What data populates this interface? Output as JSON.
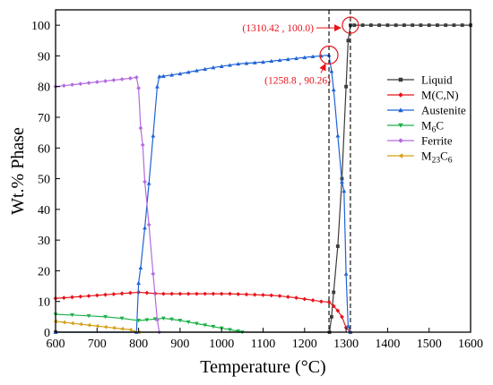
{
  "chart_data": {
    "type": "line",
    "xlabel": "Temperature (°C)",
    "ylabel": "Wt.% Phase",
    "xlim": [
      600,
      1600
    ],
    "ylim": [
      0,
      105
    ],
    "xticks": [
      600,
      700,
      800,
      900,
      1000,
      1100,
      1200,
      1300,
      1400,
      1500,
      1600
    ],
    "yticks": [
      0,
      10,
      20,
      30,
      40,
      50,
      60,
      70,
      80,
      90,
      100
    ],
    "grid": false,
    "legend_position": "right",
    "legend_entries": [
      "Liquid",
      "M(C,N)",
      "Austenite",
      "M6C",
      "Ferrite",
      "M23C6"
    ],
    "legend_display": [
      {
        "base": "Liquid",
        "sub": "",
        "rest": ""
      },
      {
        "base": "M(C,N)",
        "sub": "",
        "rest": ""
      },
      {
        "base": "Austenite",
        "sub": "",
        "rest": ""
      },
      {
        "base": "M",
        "sub": "6",
        "rest": "C"
      },
      {
        "base": "Ferrite",
        "sub": "",
        "rest": ""
      },
      {
        "base": "M",
        "sub": "23",
        "rest": "C6"
      }
    ],
    "series": [
      {
        "name": "Liquid",
        "color": "#3b3b3b",
        "marker": "square",
        "points": [
          [
            600,
            0
          ],
          [
            1260,
            0
          ],
          [
            1265,
            5
          ],
          [
            1270,
            13
          ],
          [
            1280,
            28
          ],
          [
            1290,
            50
          ],
          [
            1300,
            80
          ],
          [
            1305,
            95
          ],
          [
            1310.42,
            100
          ],
          [
            1320,
            100
          ],
          [
            1340,
            100
          ],
          [
            1360,
            100
          ],
          [
            1380,
            100
          ],
          [
            1400,
            100
          ],
          [
            1420,
            100
          ],
          [
            1440,
            100
          ],
          [
            1460,
            100
          ],
          [
            1480,
            100
          ],
          [
            1500,
            100
          ],
          [
            1520,
            100
          ],
          [
            1540,
            100
          ],
          [
            1560,
            100
          ],
          [
            1580,
            100
          ],
          [
            1600,
            100
          ]
        ]
      },
      {
        "name": "M(C,N)",
        "color": "#e8141b",
        "marker": "diamond",
        "points": [
          [
            600,
            11
          ],
          [
            620,
            11.2
          ],
          [
            640,
            11.4
          ],
          [
            660,
            11.6
          ],
          [
            680,
            11.8
          ],
          [
            700,
            12
          ],
          [
            720,
            12.2
          ],
          [
            740,
            12.4
          ],
          [
            760,
            12.6
          ],
          [
            780,
            12.8
          ],
          [
            800,
            13
          ],
          [
            820,
            12.8
          ],
          [
            840,
            12.6
          ],
          [
            860,
            12.5
          ],
          [
            880,
            12.5
          ],
          [
            900,
            12.5
          ],
          [
            920,
            12.5
          ],
          [
            940,
            12.5
          ],
          [
            960,
            12.5
          ],
          [
            980,
            12.5
          ],
          [
            1000,
            12.5
          ],
          [
            1020,
            12.5
          ],
          [
            1040,
            12.4
          ],
          [
            1060,
            12.3
          ],
          [
            1080,
            12.2
          ],
          [
            1100,
            12.1
          ],
          [
            1120,
            12
          ],
          [
            1140,
            11.8
          ],
          [
            1160,
            11.5
          ],
          [
            1180,
            11.2
          ],
          [
            1200,
            10.8
          ],
          [
            1220,
            10.4
          ],
          [
            1240,
            10
          ],
          [
            1258.8,
            9.8
          ],
          [
            1270,
            8.5
          ],
          [
            1280,
            7
          ],
          [
            1290,
            5
          ],
          [
            1300,
            1.5
          ],
          [
            1310.42,
            0
          ]
        ]
      },
      {
        "name": "Austenite",
        "color": "#1f63d6",
        "marker": "triangle-up",
        "points": [
          [
            600,
            0
          ],
          [
            795,
            0
          ],
          [
            800,
            16
          ],
          [
            805,
            21
          ],
          [
            815,
            34
          ],
          [
            825,
            48.5
          ],
          [
            835,
            64
          ],
          [
            845,
            80
          ],
          [
            850,
            83.3
          ],
          [
            860,
            83.4
          ],
          [
            880,
            83.8
          ],
          [
            900,
            84.2
          ],
          [
            920,
            84.7
          ],
          [
            940,
            85.2
          ],
          [
            960,
            85.7
          ],
          [
            980,
            86.2
          ],
          [
            1000,
            86.6
          ],
          [
            1020,
            87
          ],
          [
            1040,
            87.4
          ],
          [
            1060,
            87.6
          ],
          [
            1080,
            87.8
          ],
          [
            1100,
            88
          ],
          [
            1120,
            88.3
          ],
          [
            1140,
            88.6
          ],
          [
            1160,
            88.9
          ],
          [
            1180,
            89.2
          ],
          [
            1200,
            89.5
          ],
          [
            1220,
            89.8
          ],
          [
            1240,
            90
          ],
          [
            1258.8,
            90.26
          ],
          [
            1265,
            85
          ],
          [
            1270,
            79
          ],
          [
            1280,
            64
          ],
          [
            1290,
            49
          ],
          [
            1295,
            46
          ],
          [
            1300,
            19
          ],
          [
            1305,
            2
          ],
          [
            1310.42,
            0
          ]
        ]
      },
      {
        "name": "M6C",
        "color": "#1fb24a",
        "marker": "triangle-down",
        "points": [
          [
            600,
            5.8
          ],
          [
            640,
            5.6
          ],
          [
            680,
            5.3
          ],
          [
            720,
            5
          ],
          [
            760,
            4.5
          ],
          [
            800,
            3.8
          ],
          [
            820,
            4
          ],
          [
            840,
            4.3
          ],
          [
            860,
            4.5
          ],
          [
            880,
            4.2
          ],
          [
            900,
            3.8
          ],
          [
            920,
            3.3
          ],
          [
            940,
            2.8
          ],
          [
            960,
            2.3
          ],
          [
            980,
            1.8
          ],
          [
            1000,
            1.3
          ],
          [
            1020,
            0.8
          ],
          [
            1040,
            0.3
          ],
          [
            1050,
            0
          ]
        ]
      },
      {
        "name": "Ferrite",
        "color": "#b36be0",
        "marker": "diamond",
        "points": [
          [
            600,
            80
          ],
          [
            620,
            80.3
          ],
          [
            640,
            80.6
          ],
          [
            660,
            80.9
          ],
          [
            680,
            81.2
          ],
          [
            700,
            81.5
          ],
          [
            720,
            81.8
          ],
          [
            740,
            82.1
          ],
          [
            760,
            82.4
          ],
          [
            780,
            82.7
          ],
          [
            795,
            83
          ],
          [
            800,
            79.5
          ],
          [
            805,
            66.5
          ],
          [
            810,
            61
          ],
          [
            815,
            49
          ],
          [
            825,
            35
          ],
          [
            835,
            19
          ],
          [
            845,
            4
          ],
          [
            850,
            0
          ]
        ]
      },
      {
        "name": "M23C6",
        "color": "#d4a017",
        "marker": "triangle-left",
        "points": [
          [
            600,
            3.5
          ],
          [
            620,
            3.2
          ],
          [
            640,
            2.9
          ],
          [
            660,
            2.6
          ],
          [
            680,
            2.3
          ],
          [
            700,
            2
          ],
          [
            720,
            1.7
          ],
          [
            740,
            1.4
          ],
          [
            760,
            1.1
          ],
          [
            780,
            0.8
          ],
          [
            800,
            0
          ]
        ]
      }
    ],
    "vlines": [
      1258.8,
      1310.42
    ],
    "annotations": [
      {
        "text": "(1310.42 , 100.0)",
        "x": 1310.42,
        "y": 100.0
      },
      {
        "text": "(1258.8 , 90.26)",
        "x": 1258.8,
        "y": 90.26
      }
    ]
  }
}
